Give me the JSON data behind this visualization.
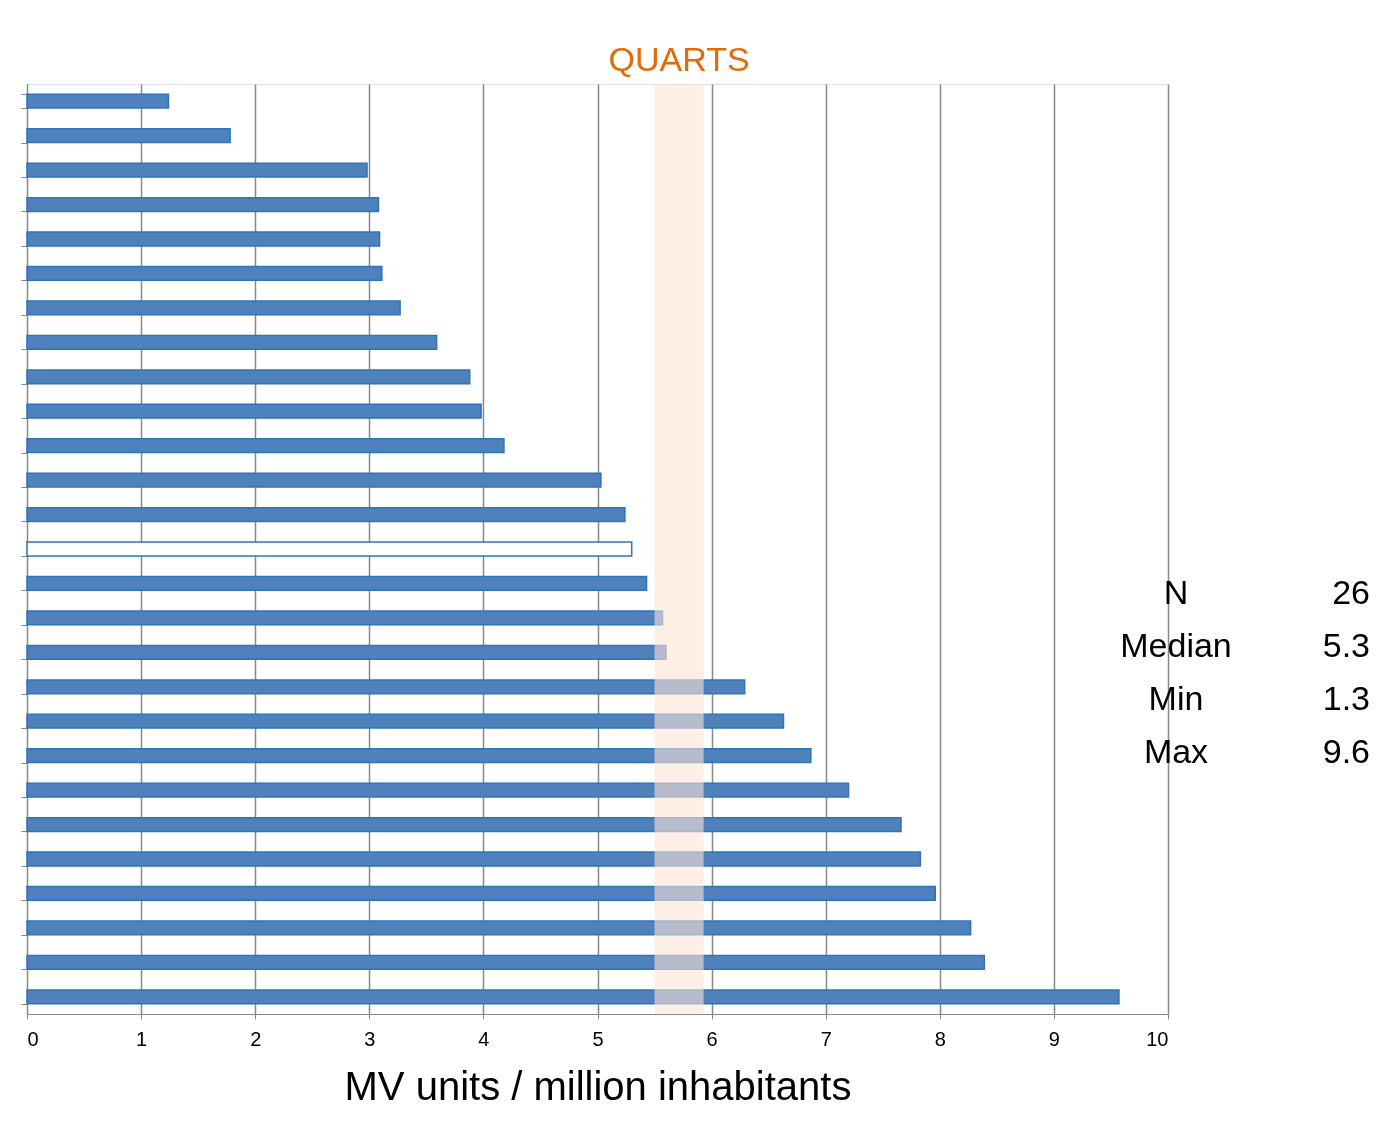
{
  "chart_data": {
    "type": "bar",
    "orientation": "horizontal",
    "categories": [
      null,
      null,
      null,
      null,
      null,
      null,
      null,
      null,
      null,
      null,
      null,
      null,
      null,
      null,
      null,
      null,
      null,
      null,
      null,
      null,
      null,
      null,
      null,
      null,
      null,
      null,
      null
    ],
    "values": [
      1.24,
      1.78,
      2.98,
      3.08,
      3.09,
      3.11,
      3.27,
      3.59,
      3.88,
      3.98,
      4.18,
      5.03,
      5.24,
      5.3,
      5.43,
      5.57,
      5.6,
      6.29,
      6.63,
      6.87,
      7.2,
      7.66,
      7.83,
      7.96,
      8.27,
      8.39,
      9.57
    ],
    "colors": [
      "#4f81bd",
      "#4f81bd",
      "#4f81bd",
      "#4f81bd",
      "#4f81bd",
      "#4f81bd",
      "#4f81bd",
      "#4f81bd",
      "#4f81bd",
      "#4f81bd",
      "#4f81bd",
      "#4f81bd",
      "#4f81bd",
      "#ffffff",
      "#4f81bd",
      "#4f81bd",
      "#4f81bd",
      "#4f81bd",
      "#4f81bd",
      "#4f81bd",
      "#4f81bd",
      "#4f81bd",
      "#4f81bd",
      "#4f81bd",
      "#4f81bd",
      "#4f81bd",
      "#4f81bd"
    ],
    "xlim": [
      0,
      10
    ],
    "xticks": [
      0,
      1,
      2,
      3,
      4,
      5,
      6,
      7,
      8,
      9,
      10
    ],
    "xlabel": "MV units / million inhabitants",
    "bands": [
      {
        "axis": "x",
        "from": 5.5,
        "to": 5.93,
        "label": "QUARTS",
        "color": "#fbe5d6"
      }
    ],
    "annotations": [
      "N",
      "26",
      "Median",
      "5.3",
      "Min",
      "1.3",
      "Max",
      "9.6"
    ],
    "grid": "x",
    "tick_labels": "x"
  }
}
